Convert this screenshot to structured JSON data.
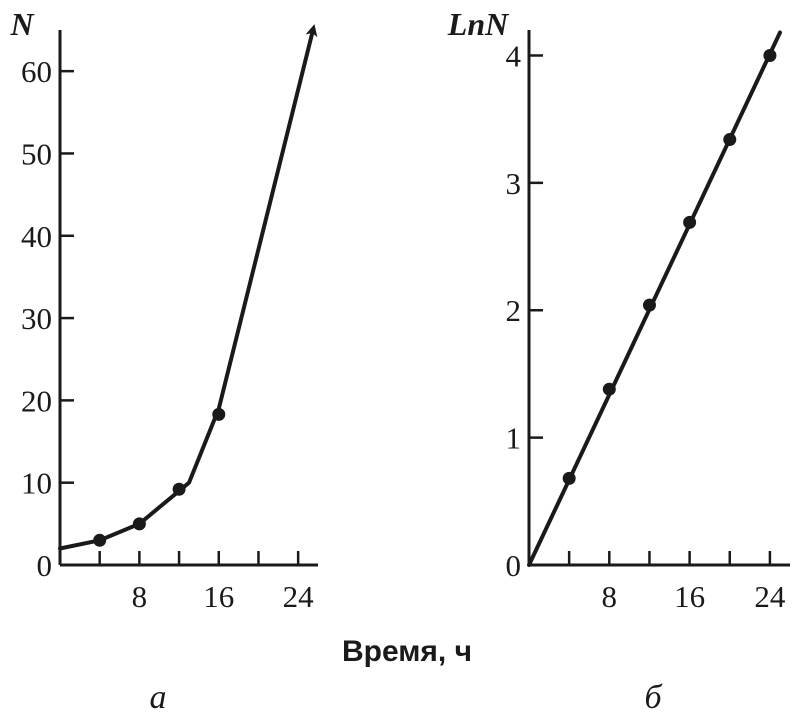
{
  "xlabel": "Время, ч",
  "chart_data": [
    {
      "type": "line",
      "panel_label": "а",
      "ylabel": "N",
      "xlabel": "Время, ч",
      "xlim": [
        0,
        26
      ],
      "ylim": [
        0,
        65
      ],
      "xticks": [
        4,
        8,
        12,
        16,
        20,
        24
      ],
      "xtick_labels": [
        "8",
        "16",
        "24"
      ],
      "xtick_label_values": [
        8,
        16,
        24
      ],
      "yticks": [
        0,
        10,
        20,
        30,
        40,
        50,
        60
      ],
      "ytick_labels": [
        "0",
        "10",
        "20",
        "30",
        "40",
        "50",
        "60"
      ],
      "series": [
        {
          "line": [
            [
              0,
              2
            ],
            [
              4,
              3
            ],
            [
              8,
              5
            ],
            [
              12,
              9
            ],
            [
              13,
              10
            ],
            [
              16,
              19
            ],
            [
              25.5,
              65
            ]
          ],
          "points": [
            [
              4,
              3
            ],
            [
              8,
              5
            ],
            [
              12,
              9.2
            ],
            [
              16,
              18.3
            ]
          ],
          "arrow_end": true
        }
      ]
    },
    {
      "type": "line",
      "panel_label": "б",
      "ylabel": "LnN",
      "xlabel": "Время, ч",
      "xlim": [
        0,
        26
      ],
      "ylim": [
        0,
        4.2
      ],
      "xticks": [
        4,
        8,
        12,
        16,
        20,
        24
      ],
      "xtick_labels": [
        "8",
        "16",
        "24"
      ],
      "xtick_label_values": [
        8,
        16,
        24
      ],
      "yticks": [
        0,
        1,
        2,
        3,
        4
      ],
      "ytick_labels": [
        "0",
        "1",
        "2",
        "3",
        "4"
      ],
      "series": [
        {
          "line": [
            [
              0,
              0
            ],
            [
              25,
              4.18
            ]
          ],
          "points": [
            [
              4,
              0.68
            ],
            [
              8,
              1.38
            ],
            [
              12,
              2.04
            ],
            [
              16,
              2.69
            ],
            [
              20,
              3.34
            ],
            [
              24,
              4.0
            ]
          ]
        }
      ]
    }
  ]
}
